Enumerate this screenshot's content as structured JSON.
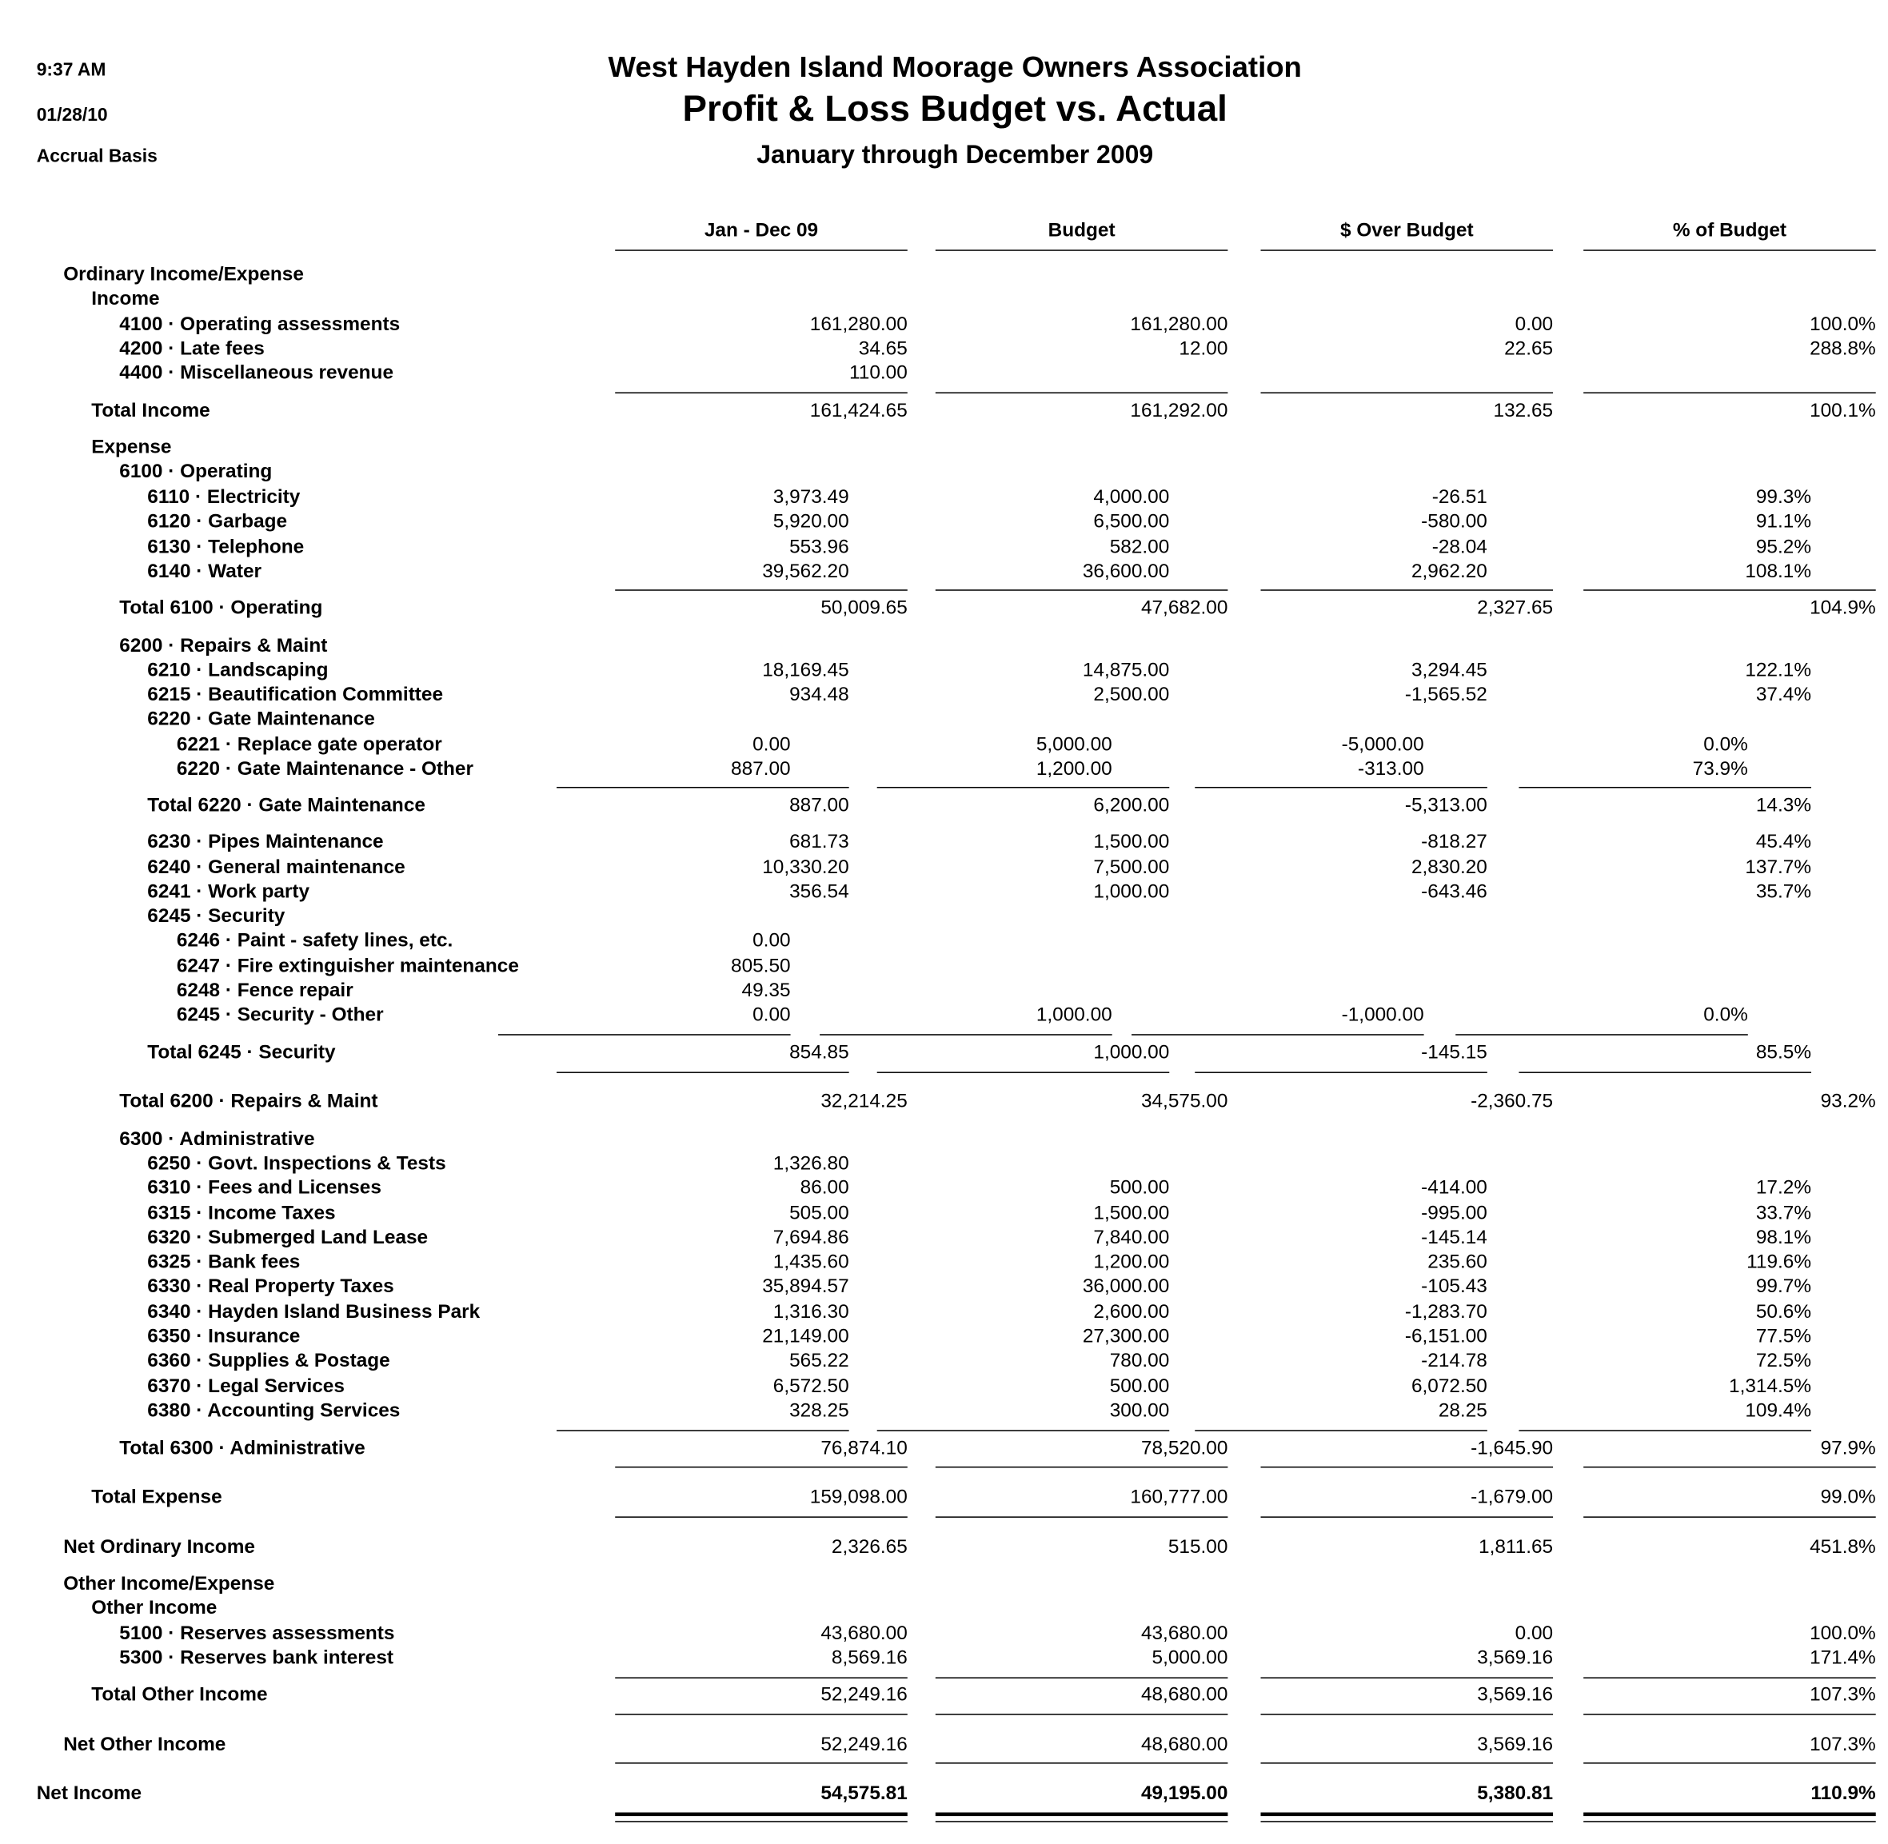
{
  "header": {
    "time": "9:37 AM",
    "date": "01/28/10",
    "basis": "Accrual Basis",
    "company": "West Hayden Island Moorage Owners Association",
    "title": "Profit & Loss Budget vs. Actual",
    "period": "January through December 2009"
  },
  "columns": [
    "Jan - Dec 09",
    "Budget",
    "$ Over Budget",
    "% of Budget"
  ],
  "rows": [
    {
      "label": "Ordinary Income/Expense",
      "values": [
        "",
        "",
        "",
        ""
      ]
    },
    {
      "label": "Income",
      "values": [
        "",
        "",
        "",
        ""
      ]
    },
    {
      "label": "4100 · Operating assessments",
      "values": [
        "161,280.00",
        "161,280.00",
        "0.00",
        "100.0%"
      ]
    },
    {
      "label": "4200 · Late fees",
      "values": [
        "34.65",
        "12.00",
        "22.65",
        "288.8%"
      ]
    },
    {
      "label": "4400 · Miscellaneous revenue",
      "values": [
        "110.00",
        "",
        "",
        ""
      ]
    },
    {
      "label": "Total Income",
      "values": [
        "161,424.65",
        "161,292.00",
        "132.65",
        "100.1%"
      ]
    },
    {
      "label": "Expense",
      "values": [
        "",
        "",
        "",
        ""
      ]
    },
    {
      "label": "6100 · Operating",
      "values": [
        "",
        "",
        "",
        ""
      ]
    },
    {
      "label": "6110 · Electricity",
      "values": [
        "3,973.49",
        "4,000.00",
        "-26.51",
        "99.3%"
      ]
    },
    {
      "label": "6120 · Garbage",
      "values": [
        "5,920.00",
        "6,500.00",
        "-580.00",
        "91.1%"
      ]
    },
    {
      "label": "6130 · Telephone",
      "values": [
        "553.96",
        "582.00",
        "-28.04",
        "95.2%"
      ]
    },
    {
      "label": "6140 · Water",
      "values": [
        "39,562.20",
        "36,600.00",
        "2,962.20",
        "108.1%"
      ]
    },
    {
      "label": "Total 6100 · Operating",
      "values": [
        "50,009.65",
        "47,682.00",
        "2,327.65",
        "104.9%"
      ]
    },
    {
      "label": "6200 · Repairs & Maint",
      "values": [
        "",
        "",
        "",
        ""
      ]
    },
    {
      "label": "6210 · Landscaping",
      "values": [
        "18,169.45",
        "14,875.00",
        "3,294.45",
        "122.1%"
      ]
    },
    {
      "label": "6215 · Beautification Committee",
      "values": [
        "934.48",
        "2,500.00",
        "-1,565.52",
        "37.4%"
      ]
    },
    {
      "label": "6220 · Gate Maintenance",
      "values": [
        "",
        "",
        "",
        ""
      ]
    },
    {
      "label": "6221 · Replace gate operator",
      "values": [
        "0.00",
        "5,000.00",
        "-5,000.00",
        "0.0%"
      ]
    },
    {
      "label": "6220 · Gate Maintenance - Other",
      "values": [
        "887.00",
        "1,200.00",
        "-313.00",
        "73.9%"
      ]
    },
    {
      "label": "Total 6220 · Gate Maintenance",
      "values": [
        "887.00",
        "6,200.00",
        "-5,313.00",
        "14.3%"
      ]
    },
    {
      "label": "6230 · Pipes Maintenance",
      "values": [
        "681.73",
        "1,500.00",
        "-818.27",
        "45.4%"
      ]
    },
    {
      "label": "6240 · General maintenance",
      "values": [
        "10,330.20",
        "7,500.00",
        "2,830.20",
        "137.7%"
      ]
    },
    {
      "label": "6241 · Work party",
      "values": [
        "356.54",
        "1,000.00",
        "-643.46",
        "35.7%"
      ]
    },
    {
      "label": "6245 · Security",
      "values": [
        "",
        "",
        "",
        ""
      ]
    },
    {
      "label": "6246 · Paint - safety lines, etc.",
      "values": [
        "0.00",
        "",
        "",
        ""
      ]
    },
    {
      "label": "6247 · Fire extinguisher maintenance",
      "values": [
        "805.50",
        "",
        "",
        ""
      ]
    },
    {
      "label": "6248 · Fence repair",
      "values": [
        "49.35",
        "",
        "",
        ""
      ]
    },
    {
      "label": "6245 · Security - Other",
      "values": [
        "0.00",
        "1,000.00",
        "-1,000.00",
        "0.0%"
      ]
    },
    {
      "label": "Total 6245 · Security",
      "values": [
        "854.85",
        "1,000.00",
        "-145.15",
        "85.5%"
      ]
    },
    {
      "label": "Total 6200 · Repairs & Maint",
      "values": [
        "32,214.25",
        "34,575.00",
        "-2,360.75",
        "93.2%"
      ]
    },
    {
      "label": "6300 · Administrative",
      "values": [
        "",
        "",
        "",
        ""
      ]
    },
    {
      "label": "6250 · Govt. Inspections & Tests",
      "values": [
        "1,326.80",
        "",
        "",
        ""
      ]
    },
    {
      "label": "6310 · Fees and Licenses",
      "values": [
        "86.00",
        "500.00",
        "-414.00",
        "17.2%"
      ]
    },
    {
      "label": "6315 · Income Taxes",
      "values": [
        "505.00",
        "1,500.00",
        "-995.00",
        "33.7%"
      ]
    },
    {
      "label": "6320 · Submerged Land Lease",
      "values": [
        "7,694.86",
        "7,840.00",
        "-145.14",
        "98.1%"
      ]
    },
    {
      "label": "6325 · Bank fees",
      "values": [
        "1,435.60",
        "1,200.00",
        "235.60",
        "119.6%"
      ]
    },
    {
      "label": "6330 · Real Property Taxes",
      "values": [
        "35,894.57",
        "36,000.00",
        "-105.43",
        "99.7%"
      ]
    },
    {
      "label": "6340 · Hayden Island Business Park",
      "values": [
        "1,316.30",
        "2,600.00",
        "-1,283.70",
        "50.6%"
      ]
    },
    {
      "label": "6350 · Insurance",
      "values": [
        "21,149.00",
        "27,300.00",
        "-6,151.00",
        "77.5%"
      ]
    },
    {
      "label": "6360 · Supplies & Postage",
      "values": [
        "565.22",
        "780.00",
        "-214.78",
        "72.5%"
      ]
    },
    {
      "label": "6370 · Legal Services",
      "values": [
        "6,572.50",
        "500.00",
        "6,072.50",
        "1,314.5%"
      ]
    },
    {
      "label": "6380 · Accounting Services",
      "values": [
        "328.25",
        "300.00",
        "28.25",
        "109.4%"
      ]
    },
    {
      "label": "Total 6300 · Administrative",
      "values": [
        "76,874.10",
        "78,520.00",
        "-1,645.90",
        "97.9%"
      ]
    },
    {
      "label": "Total Expense",
      "values": [
        "159,098.00",
        "160,777.00",
        "-1,679.00",
        "99.0%"
      ]
    },
    {
      "label": "Net Ordinary Income",
      "values": [
        "2,326.65",
        "515.00",
        "1,811.65",
        "451.8%"
      ]
    },
    {
      "label": "Other Income/Expense",
      "values": [
        "",
        "",
        "",
        ""
      ]
    },
    {
      "label": "Other Income",
      "values": [
        "",
        "",
        "",
        ""
      ]
    },
    {
      "label": "5100 · Reserves assessments",
      "values": [
        "43,680.00",
        "43,680.00",
        "0.00",
        "100.0%"
      ]
    },
    {
      "label": "5300 · Reserves bank interest",
      "values": [
        "8,569.16",
        "5,000.00",
        "3,569.16",
        "171.4%"
      ]
    },
    {
      "label": "Total Other Income",
      "values": [
        "52,249.16",
        "48,680.00",
        "3,569.16",
        "107.3%"
      ]
    },
    {
      "label": "Net Other Income",
      "values": [
        "52,249.16",
        "48,680.00",
        "3,569.16",
        "107.3%"
      ]
    },
    {
      "label": "Net Income",
      "values": [
        "54,575.81",
        "49,195.00",
        "5,380.81",
        "110.9%"
      ]
    }
  ]
}
